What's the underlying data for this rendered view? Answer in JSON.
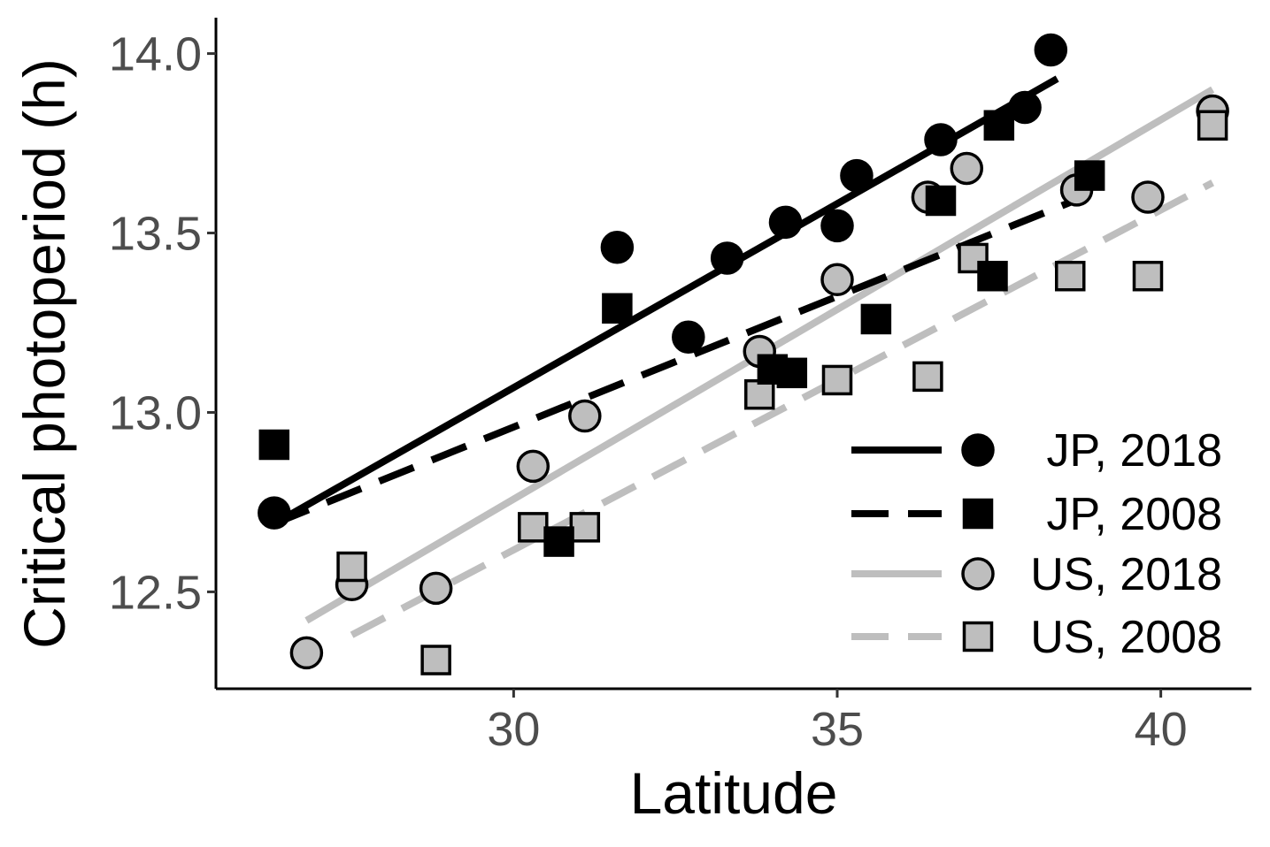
{
  "chart_data": {
    "type": "scatter",
    "xlabel": "Latitude",
    "ylabel": "Critical photoperiod (h)",
    "xlim": [
      25.4,
      41.4
    ],
    "ylim": [
      12.23,
      14.1
    ],
    "xticks": [
      30,
      35,
      40
    ],
    "yticks": [
      12.5,
      13.0,
      13.5,
      14.0
    ],
    "xtick_labels": [
      "30",
      "35",
      "40"
    ],
    "ytick_labels": [
      "12.5",
      "13.0",
      "13.5",
      "14.0"
    ],
    "grid": false,
    "legend_position": "bottom-right",
    "series": [
      {
        "name": "JP, 2018",
        "marker": "circle",
        "line": "solid",
        "fill": "#000000",
        "line_color": "#000000",
        "points": [
          [
            26.3,
            12.72
          ],
          [
            31.6,
            13.46
          ],
          [
            32.7,
            13.21
          ],
          [
            33.3,
            13.43
          ],
          [
            34.2,
            13.53
          ],
          [
            35.0,
            13.52
          ],
          [
            35.3,
            13.66
          ],
          [
            36.6,
            13.76
          ],
          [
            37.9,
            13.85
          ],
          [
            38.3,
            14.01
          ]
        ],
        "fit": [
          [
            26.3,
            12.69
          ],
          [
            38.4,
            13.93
          ]
        ]
      },
      {
        "name": "JP, 2008",
        "marker": "square",
        "line": "dashed",
        "fill": "#000000",
        "line_color": "#000000",
        "points": [
          [
            26.3,
            12.91
          ],
          [
            31.6,
            13.29
          ],
          [
            30.7,
            12.64
          ],
          [
            34.0,
            13.12
          ],
          [
            34.3,
            13.11
          ],
          [
            35.6,
            13.26
          ],
          [
            36.6,
            13.59
          ],
          [
            37.4,
            13.38
          ],
          [
            37.5,
            13.8
          ],
          [
            38.9,
            13.66
          ]
        ],
        "fit": [
          [
            26.3,
            12.69
          ],
          [
            38.8,
            13.6
          ]
        ]
      },
      {
        "name": "US, 2018",
        "marker": "circle",
        "line": "solid",
        "fill": "#bebebe",
        "line_color": "#bebebe",
        "points": [
          [
            26.8,
            12.33
          ],
          [
            27.5,
            12.52
          ],
          [
            28.8,
            12.51
          ],
          [
            30.3,
            12.85
          ],
          [
            31.1,
            12.99
          ],
          [
            33.8,
            13.17
          ],
          [
            35.0,
            13.37
          ],
          [
            36.4,
            13.6
          ],
          [
            37.0,
            13.68
          ],
          [
            38.7,
            13.62
          ],
          [
            39.8,
            13.6
          ],
          [
            40.8,
            13.84
          ]
        ],
        "fit": [
          [
            26.8,
            12.42
          ],
          [
            40.8,
            13.9
          ]
        ]
      },
      {
        "name": "US, 2008",
        "marker": "square",
        "line": "dashed",
        "fill": "#bebebe",
        "line_color": "#bebebe",
        "points": [
          [
            27.5,
            12.57
          ],
          [
            28.8,
            12.31
          ],
          [
            30.3,
            12.68
          ],
          [
            31.1,
            12.68
          ],
          [
            33.8,
            13.05
          ],
          [
            35.0,
            13.09
          ],
          [
            36.4,
            13.1
          ],
          [
            37.1,
            13.43
          ],
          [
            38.6,
            13.38
          ],
          [
            39.8,
            13.38
          ],
          [
            40.8,
            13.8
          ]
        ],
        "fit": [
          [
            27.5,
            12.38
          ],
          [
            40.8,
            13.64
          ]
        ]
      }
    ]
  }
}
